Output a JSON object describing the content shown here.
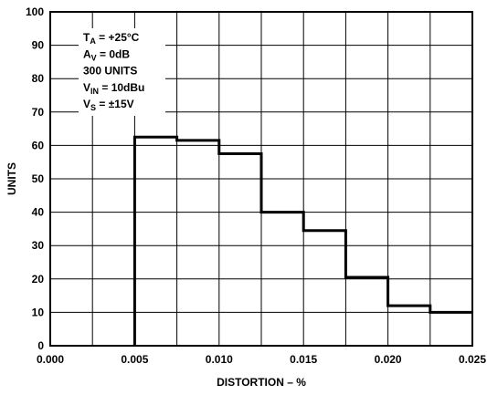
{
  "chart_data": {
    "type": "histogram",
    "xlabel": "DISTORTION – %",
    "ylabel": "UNITS",
    "xlim": [
      0.0,
      0.025
    ],
    "ylim": [
      0,
      100
    ],
    "x_ticks": [
      "0.000",
      "0.005",
      "0.010",
      "0.015",
      "0.020",
      "0.025"
    ],
    "y_ticks": [
      "0",
      "10",
      "20",
      "30",
      "40",
      "50",
      "60",
      "70",
      "80",
      "90",
      "100"
    ],
    "grid": true,
    "bin_edges": [
      0.005,
      0.0075,
      0.01,
      0.0125,
      0.015,
      0.0175,
      0.02,
      0.0225,
      0.025
    ],
    "values": [
      62.5,
      61.5,
      57.5,
      40,
      34.5,
      20.5,
      12,
      10
    ],
    "annotations": [
      {
        "main": "T",
        "sub": "A",
        "rest": " = +25°C"
      },
      {
        "main": "A",
        "sub": "V",
        "rest": " = 0dB"
      },
      {
        "main": "300 UNITS",
        "sub": "",
        "rest": ""
      },
      {
        "main": "V",
        "sub": "IN",
        "rest": " = 10dBu"
      },
      {
        "main": "V",
        "sub": "S",
        "rest": " = ±15V"
      }
    ]
  }
}
